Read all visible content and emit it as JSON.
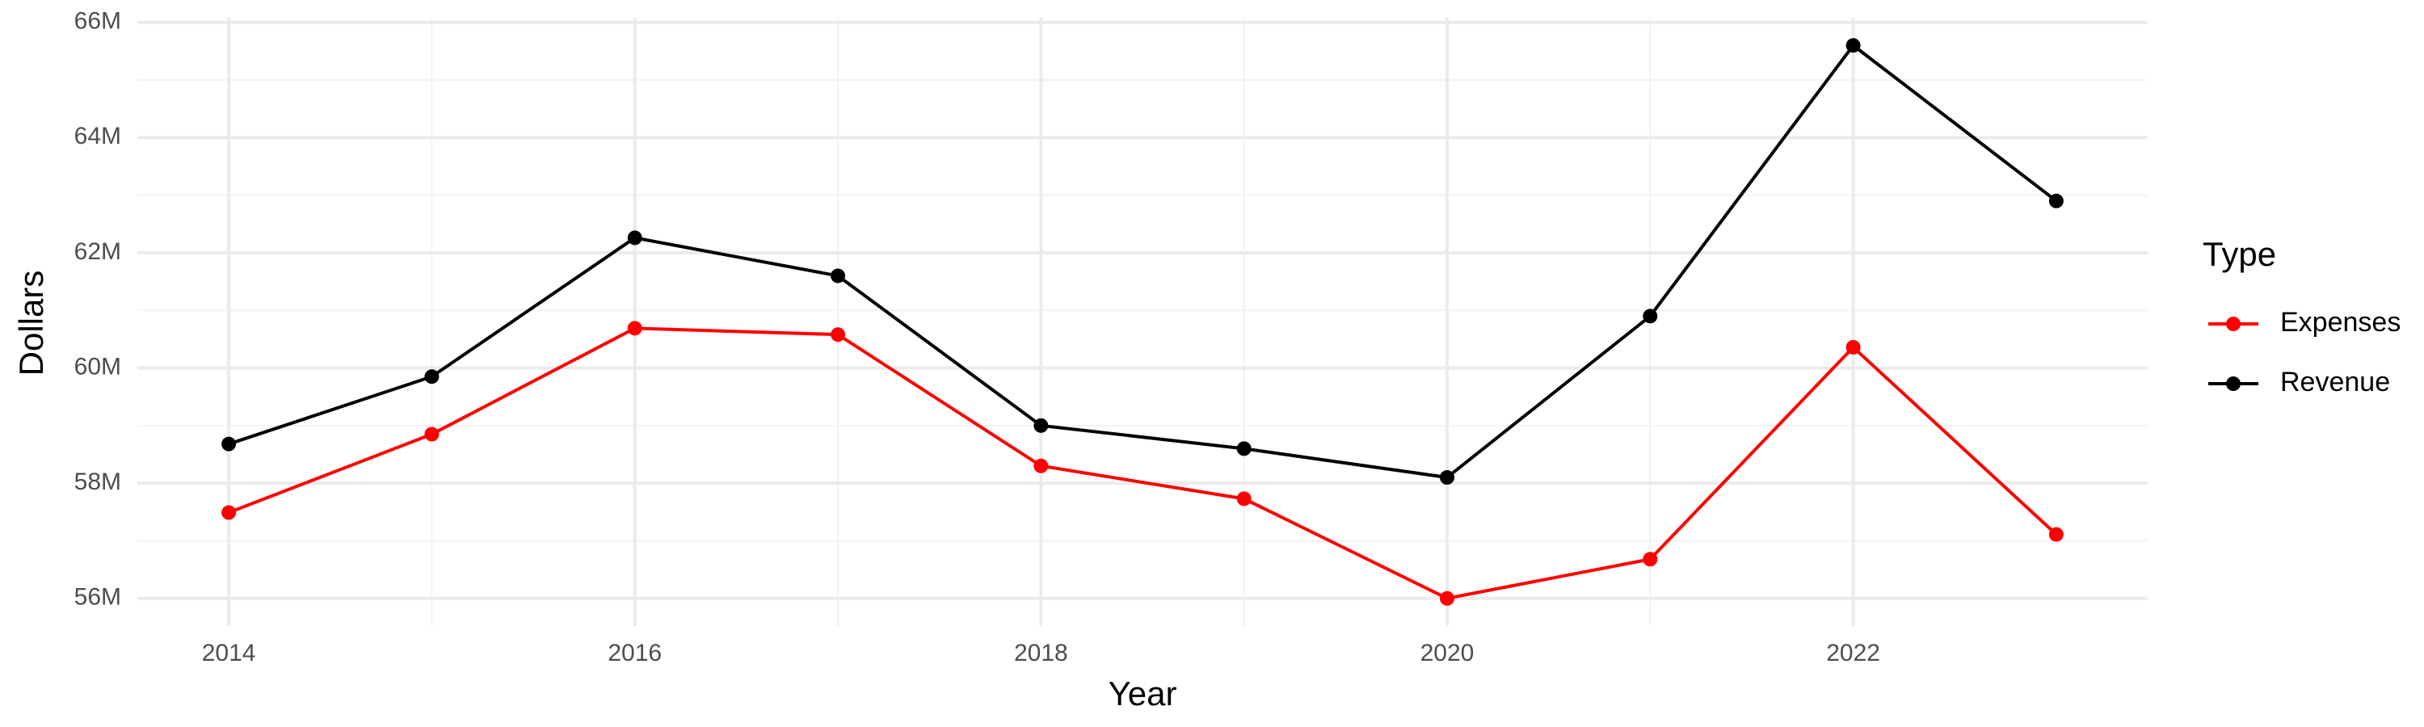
{
  "chart_data": {
    "type": "line",
    "x_label": "Year",
    "y_label": "Dollars",
    "legend_title": "Type",
    "legend_position": "right",
    "grid": true,
    "x": [
      2014,
      2015,
      2016,
      2017,
      2018,
      2019,
      2020,
      2021,
      2022,
      2023
    ],
    "series": [
      {
        "name": "Expenses",
        "color": "#ff0000",
        "values": [
          57490000,
          58850000,
          60690000,
          60580000,
          58300000,
          57730000,
          56000000,
          56680000,
          60360000,
          57110000
        ]
      },
      {
        "name": "Revenue",
        "color": "#000000",
        "values": [
          58680000,
          59850000,
          62260000,
          61600000,
          59000000,
          58600000,
          58100000,
          60900000,
          65600000,
          62900000
        ]
      }
    ],
    "xlim": [
      2013.55,
      2023.45
    ],
    "xticks": [
      2014,
      2016,
      2018,
      2020,
      2022
    ],
    "ylim": [
      55520000,
      66080000
    ],
    "yticks": [
      {
        "value": 56000000,
        "label": "56M"
      },
      {
        "value": 58000000,
        "label": "58M"
      },
      {
        "value": 60000000,
        "label": "60M"
      },
      {
        "value": 62000000,
        "label": "62M"
      },
      {
        "value": 64000000,
        "label": "64M"
      },
      {
        "value": 66000000,
        "label": "66M"
      }
    ]
  }
}
